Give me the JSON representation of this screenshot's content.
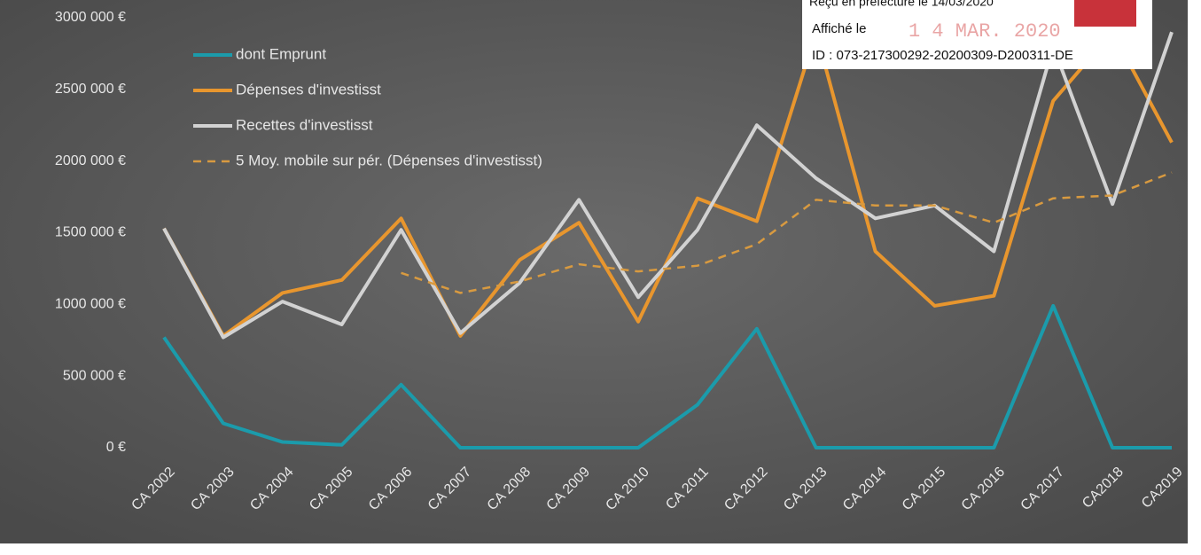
{
  "chart_data": {
    "type": "line",
    "categories": [
      "CA 2002",
      "CA 2003",
      "CA 2004",
      "CA 2005",
      "CA 2006",
      "CA 2007",
      "CA 2008",
      "CA 2009",
      "CA 2010",
      "CA 2011",
      "CA 2012",
      "CA 2013",
      "CA 2014",
      "CA 2015",
      "CA 2016",
      "CA 2017",
      "CA2018",
      "CA2019"
    ],
    "series": [
      {
        "name": "dont Emprunt",
        "color": "#1b9bab",
        "dash": false,
        "values": [
          770000,
          170000,
          40000,
          20000,
          440000,
          0,
          0,
          0,
          0,
          300000,
          830000,
          0,
          0,
          0,
          0,
          990000,
          0,
          0
        ]
      },
      {
        "name": "Dépenses d'investisst",
        "color": "#e8962e",
        "dash": false,
        "values": [
          1530000,
          780000,
          1080000,
          1170000,
          1600000,
          780000,
          1310000,
          1570000,
          880000,
          1740000,
          1580000,
          2900000,
          1370000,
          990000,
          1060000,
          2420000,
          2900000,
          2130000
        ]
      },
      {
        "name": "Recettes d'investisst",
        "color": "#d2d2d2",
        "dash": false,
        "values": [
          1530000,
          770000,
          1020000,
          860000,
          1520000,
          800000,
          1150000,
          1730000,
          1050000,
          1520000,
          2250000,
          1880000,
          1600000,
          1690000,
          1370000,
          2800000,
          1700000,
          2900000
        ]
      },
      {
        "name": "5 Moy. mobile sur pér. (Dépenses d'investisst)",
        "color": "#d89a40",
        "dash": true,
        "values": [
          null,
          null,
          null,
          null,
          1220000,
          1080000,
          1160000,
          1280000,
          1230000,
          1270000,
          1420000,
          1730000,
          1690000,
          1690000,
          1570000,
          1740000,
          1760000,
          1920000
        ]
      }
    ],
    "ylim": [
      0,
      3000000
    ],
    "yticks": [
      {
        "value": 0,
        "label": "0 €"
      },
      {
        "value": 500000,
        "label": "500 000 €"
      },
      {
        "value": 1000000,
        "label": "1000 000 €"
      },
      {
        "value": 1500000,
        "label": "1500 000 €"
      },
      {
        "value": 2000000,
        "label": "2000 000 €"
      },
      {
        "value": 2500000,
        "label": "2500 000 €"
      },
      {
        "value": 3000000,
        "label": "3000 000 €"
      }
    ],
    "legend": "top-left",
    "annotations": [
      "Reçu en préfecture le 14/03/2020",
      "Affiché le",
      "1 4 MAR. 2020",
      "ID : 073-217300292-20200309-D200311-DE"
    ]
  }
}
